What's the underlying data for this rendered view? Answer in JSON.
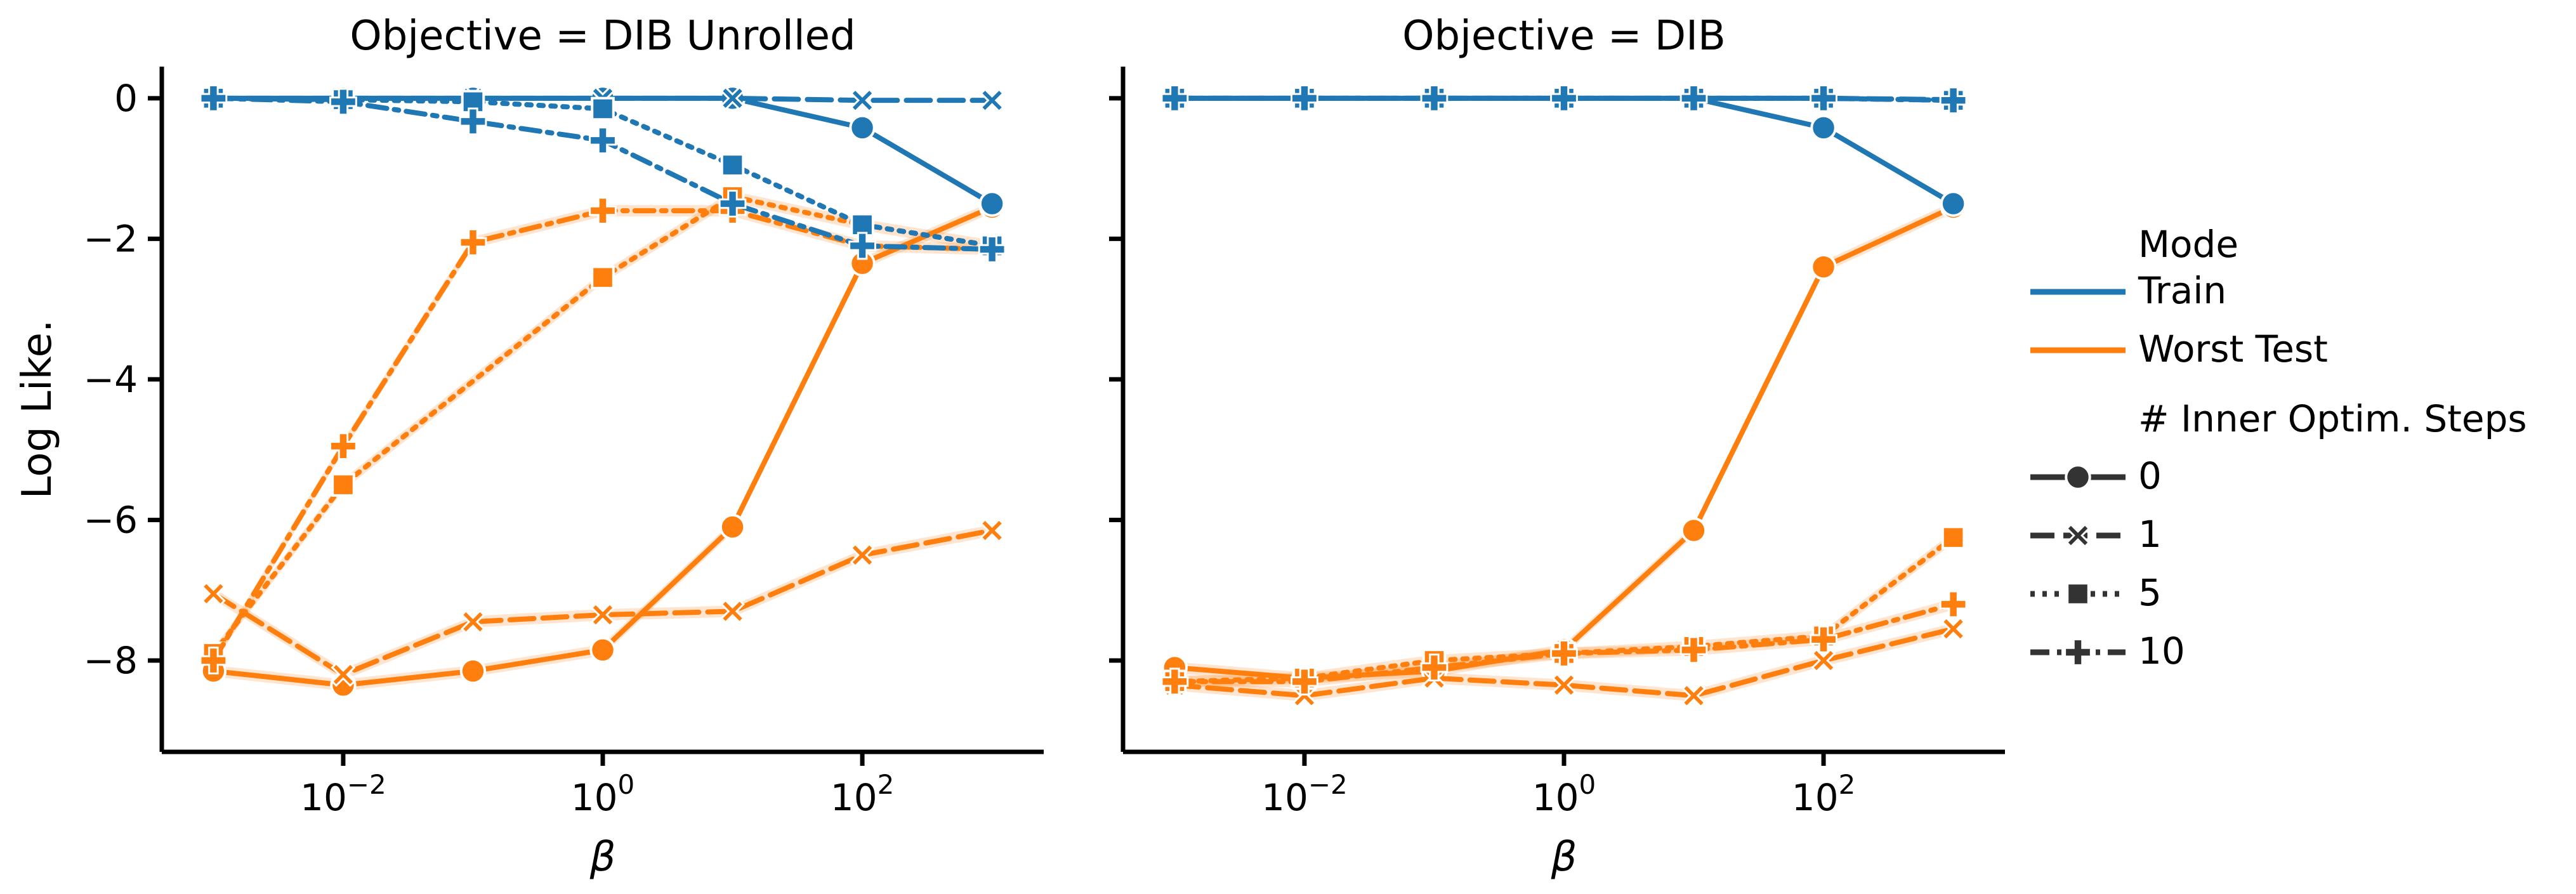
{
  "chart_data": [
    {
      "type": "line",
      "title": "Objective = DIB Unrolled",
      "xlabel": "β",
      "ylabel": "Log Like.",
      "xscale": "log",
      "xlim": [
        0.0004,
        2500
      ],
      "ylim": [
        -9.3,
        0.45
      ],
      "x_ticks": [
        0.01,
        1,
        100
      ],
      "x_tick_labels": [
        {
          "base": "10",
          "exp": "−2"
        },
        {
          "base": "10",
          "exp": "0"
        },
        {
          "base": "10",
          "exp": "2"
        }
      ],
      "y_ticks": [
        0,
        -2,
        -4,
        -6,
        -8
      ],
      "y_tick_labels": [
        "0",
        "−2",
        "−4",
        "−6",
        "−8"
      ],
      "x": [
        0.001,
        0.01,
        0.1,
        1,
        10,
        100,
        1000
      ],
      "grid": false,
      "series": [
        {
          "mode": "Train",
          "steps": "0",
          "values": [
            0,
            0,
            0,
            0,
            0,
            -0.42,
            -1.5
          ]
        },
        {
          "mode": "Train",
          "steps": "1",
          "values": [
            0,
            0,
            0,
            0,
            0,
            -0.03,
            -0.03
          ]
        },
        {
          "mode": "Train",
          "steps": "5",
          "values": [
            0,
            -0.02,
            -0.05,
            -0.15,
            -0.95,
            -1.8,
            -2.1
          ]
        },
        {
          "mode": "Train",
          "steps": "10",
          "values": [
            0,
            -0.05,
            -0.33,
            -0.6,
            -1.5,
            -2.1,
            -2.15
          ]
        },
        {
          "mode": "Worst Test",
          "steps": "0",
          "values": [
            -8.15,
            -8.35,
            -8.15,
            -7.85,
            -6.1,
            -2.35,
            -1.55
          ]
        },
        {
          "mode": "Worst Test",
          "steps": "1",
          "values": [
            -7.05,
            -8.2,
            -7.45,
            -7.35,
            -7.3,
            -6.5,
            -6.15
          ]
        },
        {
          "mode": "Worst Test",
          "steps": "5",
          "values": [
            -7.9,
            -5.5,
            null,
            -2.55,
            -1.4,
            -1.8,
            -2.1
          ]
        },
        {
          "mode": "Worst Test",
          "steps": "10",
          "values": [
            -8.0,
            -4.95,
            -2.05,
            -1.6,
            -1.6,
            -2.1,
            -2.15
          ]
        }
      ]
    },
    {
      "type": "line",
      "title": "Objective = DIB",
      "xlabel": "β",
      "ylabel": "",
      "xscale": "log",
      "xlim": [
        0.0004,
        2500
      ],
      "ylim": [
        -9.3,
        0.45
      ],
      "x_ticks": [
        0.01,
        1,
        100
      ],
      "x_tick_labels": [
        {
          "base": "10",
          "exp": "−2"
        },
        {
          "base": "10",
          "exp": "0"
        },
        {
          "base": "10",
          "exp": "2"
        }
      ],
      "y_ticks": [
        0,
        -2,
        -4,
        -6,
        -8
      ],
      "y_tick_labels": [],
      "x": [
        0.001,
        0.01,
        0.1,
        1,
        10,
        100,
        1000
      ],
      "grid": false,
      "series": [
        {
          "mode": "Train",
          "steps": "0",
          "values": [
            0,
            0,
            0,
            0,
            0,
            -0.42,
            -1.5
          ]
        },
        {
          "mode": "Train",
          "steps": "1",
          "values": [
            0,
            0,
            0,
            0,
            0,
            0,
            -0.02
          ]
        },
        {
          "mode": "Train",
          "steps": "5",
          "values": [
            0,
            0,
            0,
            0,
            0,
            0,
            -0.03
          ]
        },
        {
          "mode": "Train",
          "steps": "10",
          "values": [
            0,
            0,
            0,
            0,
            0,
            0,
            -0.03
          ]
        },
        {
          "mode": "Worst Test",
          "steps": "0",
          "values": [
            -8.1,
            -8.25,
            -8.15,
            -7.85,
            -6.15,
            -2.4,
            -1.55
          ]
        },
        {
          "mode": "Worst Test",
          "steps": "1",
          "values": [
            -8.35,
            -8.5,
            -8.25,
            -8.35,
            -8.5,
            -8.0,
            -7.55
          ]
        },
        {
          "mode": "Worst Test",
          "steps": "5",
          "values": [
            -8.3,
            -8.25,
            -8.0,
            -7.9,
            -7.8,
            -7.65,
            -6.25
          ]
        },
        {
          "mode": "Worst Test",
          "steps": "10",
          "values": [
            -8.3,
            -8.3,
            -8.1,
            -7.9,
            -7.85,
            -7.7,
            -7.2
          ]
        }
      ]
    }
  ],
  "legend": {
    "placement": "right",
    "mode_title": "Mode",
    "modes": [
      {
        "name": "Train",
        "color": "#1f77b4"
      },
      {
        "name": "Worst Test",
        "color": "#ff7f0e"
      }
    ],
    "steps_title": "# Inner Optim. Steps",
    "steps": [
      {
        "name": "0",
        "marker": "circle",
        "dash": "solid"
      },
      {
        "name": "1",
        "marker": "x",
        "dash": "dashed"
      },
      {
        "name": "5",
        "marker": "square",
        "dash": "dotted"
      },
      {
        "name": "10",
        "marker": "plus",
        "dash": "dashdot"
      }
    ]
  }
}
